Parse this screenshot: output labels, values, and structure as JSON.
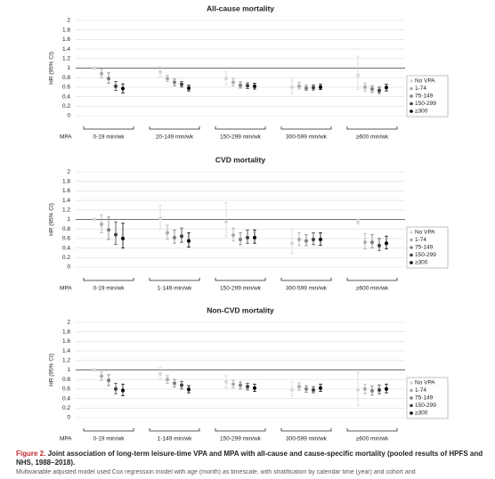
{
  "chart_data": [
    {
      "type": "errorbar",
      "title": "All-cause mortality",
      "y_label": "HR (95% CI)",
      "x_label": "MPA",
      "categories": [
        "0-19 min/wk",
        "20-149 min/wk",
        "150-299 min/wk",
        "300-599 min/wk",
        "≥600 min/wk"
      ],
      "ylim": [
        0,
        2
      ],
      "yticks": [
        0,
        0.2,
        0.4,
        0.6,
        0.8,
        1,
        1.2,
        1.4,
        1.6,
        1.8,
        2
      ],
      "grid": true,
      "ref_line": 1,
      "legend": "right",
      "series": [
        {
          "name": "No VPA",
          "color": "#d6d6d6",
          "values": [
            1,
            0.92,
            0.78,
            0.6,
            0.85
          ],
          "lower": [
            null,
            0.82,
            0.65,
            0.47,
            0.55
          ],
          "upper": [
            null,
            1.03,
            0.92,
            0.75,
            1.25
          ]
        },
        {
          "name": "1-74",
          "color": "#ababab",
          "values": [
            0.88,
            0.78,
            0.7,
            0.62,
            0.6
          ],
          "lower": [
            0.8,
            0.72,
            0.63,
            0.56,
            0.52
          ],
          "upper": [
            0.97,
            0.85,
            0.78,
            0.7,
            0.68
          ]
        },
        {
          "name": "75-149",
          "color": "#7f7f7f",
          "values": [
            0.78,
            0.7,
            0.64,
            0.58,
            0.56
          ],
          "lower": [
            0.68,
            0.63,
            0.58,
            0.53,
            0.49
          ],
          "upper": [
            0.9,
            0.77,
            0.71,
            0.64,
            0.63
          ]
        },
        {
          "name": "150-299",
          "color": "#3f3f3f",
          "values": [
            0.62,
            0.66,
            0.63,
            0.59,
            0.53
          ],
          "lower": [
            0.53,
            0.6,
            0.57,
            0.54,
            0.47
          ],
          "upper": [
            0.72,
            0.72,
            0.69,
            0.65,
            0.6
          ]
        },
        {
          "name": "≥300",
          "color": "#000000",
          "values": [
            0.57,
            0.58,
            0.62,
            0.6,
            0.59
          ],
          "lower": [
            0.48,
            0.52,
            0.56,
            0.55,
            0.52
          ],
          "upper": [
            0.67,
            0.64,
            0.68,
            0.66,
            0.66
          ]
        }
      ]
    },
    {
      "type": "errorbar",
      "title": "CVD mortality",
      "y_label": "HR (95% CI)",
      "x_label": "MPA",
      "categories": [
        "0-19 min/wk",
        "1-149 min/wk",
        "150-299 min/wk",
        "300-599 min/wk",
        "≥600 min/wk"
      ],
      "ylim": [
        0,
        2
      ],
      "yticks": [
        0,
        0.2,
        0.4,
        0.6,
        0.8,
        1,
        1.2,
        1.4,
        1.6,
        1.8,
        2
      ],
      "grid": true,
      "ref_line": 1,
      "legend": "right",
      "series": [
        {
          "name": "No VPA",
          "color": "#d6d6d6",
          "values": [
            1,
            1.02,
            0.95,
            0.5,
            0.95
          ],
          "lower": [
            null,
            0.8,
            0.65,
            0.28,
            0.9
          ],
          "upper": [
            null,
            1.3,
            1.35,
            0.8,
            1.0
          ]
        },
        {
          "name": "1-74",
          "color": "#ababab",
          "values": [
            0.9,
            0.72,
            0.67,
            0.58,
            0.52
          ],
          "lower": [
            0.72,
            0.58,
            0.55,
            0.45,
            0.38
          ],
          "upper": [
            1.1,
            0.88,
            0.82,
            0.72,
            0.7
          ]
        },
        {
          "name": "75-149",
          "color": "#7f7f7f",
          "values": [
            0.78,
            0.62,
            0.58,
            0.55,
            0.52
          ],
          "lower": [
            0.58,
            0.5,
            0.47,
            0.45,
            0.4
          ],
          "upper": [
            1.05,
            0.78,
            0.72,
            0.68,
            0.68
          ]
        },
        {
          "name": "150-299",
          "color": "#3f3f3f",
          "values": [
            0.68,
            0.65,
            0.62,
            0.58,
            0.45
          ],
          "lower": [
            0.48,
            0.52,
            0.5,
            0.47,
            0.35
          ],
          "upper": [
            0.95,
            0.82,
            0.78,
            0.72,
            0.6
          ]
        },
        {
          "name": "≥300",
          "color": "#000000",
          "values": [
            0.6,
            0.55,
            0.62,
            0.58,
            0.5
          ],
          "lower": [
            0.4,
            0.42,
            0.5,
            0.46,
            0.38
          ],
          "upper": [
            0.92,
            0.72,
            0.78,
            0.72,
            0.65
          ]
        }
      ]
    },
    {
      "type": "errorbar",
      "title": "Non-CVD mortality",
      "y_label": "HR (95% CI)",
      "x_label": "MPA",
      "categories": [
        "0-19 min/wk",
        "1-149 min/wk",
        "150-299 min/wk",
        "300-599 min/wk",
        "≥600 min/wk"
      ],
      "ylim": [
        0,
        2
      ],
      "yticks": [
        0,
        0.2,
        0.4,
        0.6,
        0.8,
        1,
        1.2,
        1.4,
        1.6,
        1.8,
        2
      ],
      "grid": true,
      "ref_line": 1,
      "legend": "right",
      "series": [
        {
          "name": "No VPA",
          "color": "#d6d6d6",
          "values": [
            1,
            0.92,
            0.75,
            0.58,
            0.58
          ],
          "lower": [
            null,
            0.8,
            0.62,
            0.45,
            0.25
          ],
          "upper": [
            null,
            1.05,
            0.88,
            0.75,
            0.95
          ]
        },
        {
          "name": "1-74",
          "color": "#ababab",
          "values": [
            0.87,
            0.8,
            0.7,
            0.65,
            0.6
          ],
          "lower": [
            0.78,
            0.72,
            0.62,
            0.57,
            0.5
          ],
          "upper": [
            0.96,
            0.88,
            0.78,
            0.73,
            0.7
          ]
        },
        {
          "name": "75-149",
          "color": "#7f7f7f",
          "values": [
            0.78,
            0.72,
            0.68,
            0.6,
            0.56
          ],
          "lower": [
            0.67,
            0.64,
            0.6,
            0.53,
            0.47
          ],
          "upper": [
            0.9,
            0.8,
            0.75,
            0.67,
            0.66
          ]
        },
        {
          "name": "150-299",
          "color": "#3f3f3f",
          "values": [
            0.6,
            0.68,
            0.65,
            0.58,
            0.58
          ],
          "lower": [
            0.5,
            0.6,
            0.58,
            0.52,
            0.5
          ],
          "upper": [
            0.72,
            0.76,
            0.72,
            0.65,
            0.68
          ]
        },
        {
          "name": "≥300",
          "color": "#000000",
          "values": [
            0.57,
            0.59,
            0.62,
            0.62,
            0.6
          ],
          "lower": [
            0.46,
            0.52,
            0.55,
            0.55,
            0.52
          ],
          "upper": [
            0.7,
            0.67,
            0.7,
            0.7,
            0.7
          ]
        }
      ]
    }
  ],
  "caption": {
    "label": "Figure 2.",
    "text": "Joint association of long-term leisure-time VPA and MPA with all-cause and cause-specific mortality (pooled results of HPFS and NHS, 1988–2018).",
    "note": "Multivariable adjusted model used Cox regression model with age (month) as timescale, with stratification by calendar time (year) and cohort and"
  }
}
